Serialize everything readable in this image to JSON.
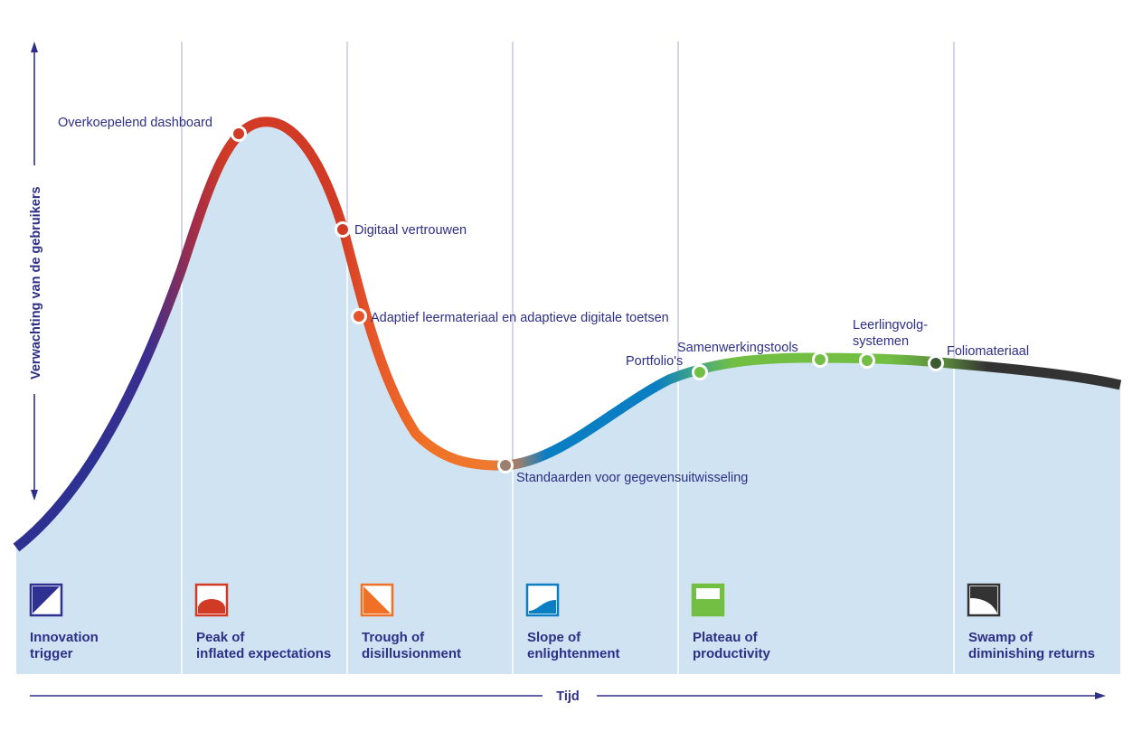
{
  "axes": {
    "y_label": "Verwachting van de gebruikers",
    "x_label": "Tijd",
    "axis_color": "#2e2f86"
  },
  "colors": {
    "area_fill": "#cfe3f3",
    "divider": "#a9a8d6",
    "label_text": "#2e2f86",
    "innovation": "#2e3192",
    "peak": "#d13a24",
    "trough": "#f07125",
    "slope": "#0a7ec2",
    "plateau": "#72bf44",
    "swamp": "#333333"
  },
  "phases": [
    {
      "line1": "Innovation",
      "line2": "trigger"
    },
    {
      "line1": "Peak of",
      "line2": "inflated expectations"
    },
    {
      "line1": "Trough of",
      "line2": "disillusionment"
    },
    {
      "line1": "Slope of",
      "line2": "enlightenment"
    },
    {
      "line1": "Plateau of",
      "line2": "productivity"
    },
    {
      "line1": "Swamp of",
      "line2": "diminishing returns"
    }
  ],
  "points": [
    {
      "label": "Overkoepelend dashboard"
    },
    {
      "label": "Digitaal vertrouwen"
    },
    {
      "label": "Adaptief leermateriaal en adaptieve digitale toetsen"
    },
    {
      "label": "Standaarden voor gegevensuitwisseling"
    },
    {
      "label": "Portfolio's"
    },
    {
      "label": "Samenwerkingstools"
    },
    {
      "label_line1": "Leerlingvolg-",
      "label_line2": "systemen"
    },
    {
      "label": "Foliomateriaal"
    }
  ]
}
